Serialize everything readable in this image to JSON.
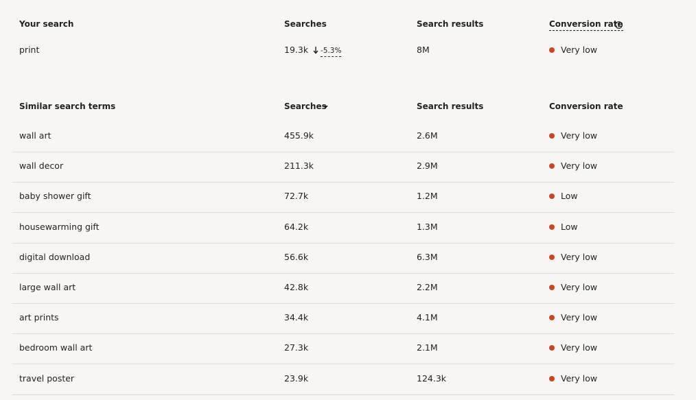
{
  "your_search": {
    "headers": [
      "Your search",
      "Searches",
      "Search results",
      "Conversion rate"
    ],
    "row": {
      "term": "print",
      "searches": "19.3k",
      "change": "-5.3%",
      "results": "8M",
      "conversion": "Very low"
    }
  },
  "similar_terms": {
    "headers": [
      "Similar search terms",
      "Searches",
      "Search results",
      "Conversion rate"
    ],
    "rows": [
      [
        "wall art",
        "455.9k",
        "2.6M",
        "Very low"
      ],
      [
        "wall decor",
        "211.3k",
        "2.9M",
        "Very low"
      ],
      [
        "baby shower gift",
        "72.7k",
        "1.2M",
        "Low"
      ],
      [
        "housewarming gift",
        "64.2k",
        "1.3M",
        "Low"
      ],
      [
        "digital download",
        "56.6k",
        "6.3M",
        "Very low"
      ],
      [
        "large wall art",
        "42.8k",
        "2.2M",
        "Very low"
      ],
      [
        "art prints",
        "34.4k",
        "4.1M",
        "Very low"
      ],
      [
        "bedroom wall art",
        "27.3k",
        "2.1M",
        "Very low"
      ],
      [
        "travel poster",
        "23.9k",
        "124.3k",
        "Very low"
      ]
    ]
  }
}
